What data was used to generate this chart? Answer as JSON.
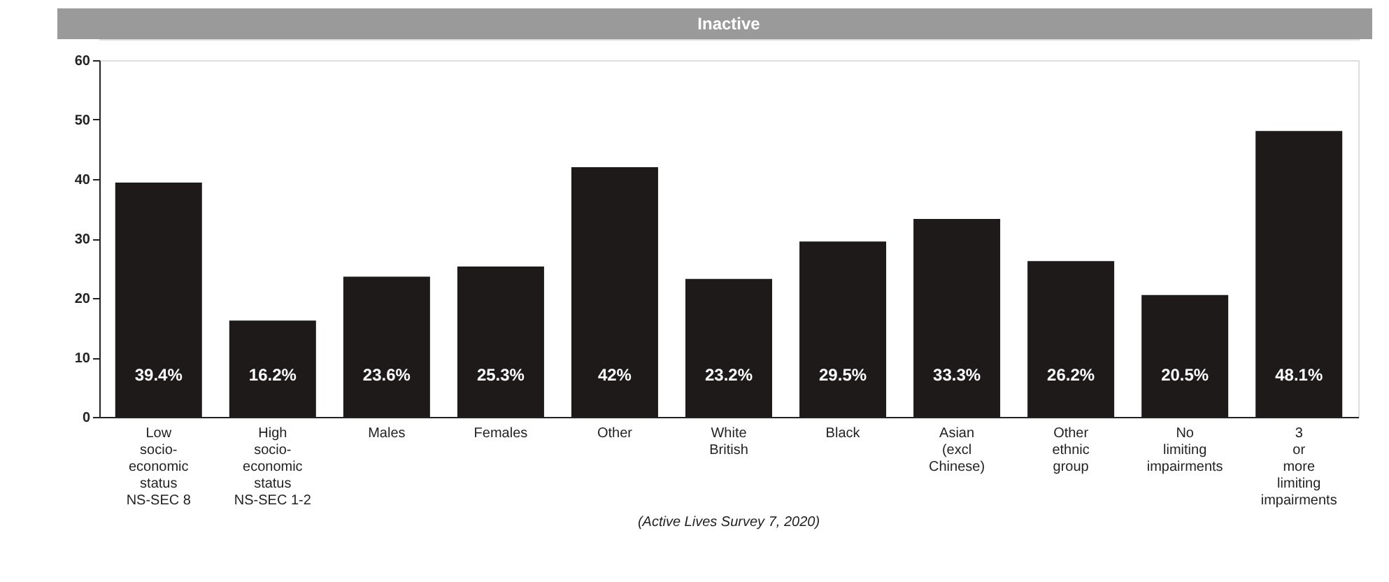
{
  "chart_data": {
    "type": "bar",
    "title": "Inactive",
    "categories": [
      "Low\nsocio-\neconomic\nstatus\nNS-SEC 8",
      "High\nsocio-\neconomic\nstatus\nNS-SEC 1-2",
      "Males",
      "Females",
      "Other",
      "White\nBritish",
      "Black",
      "Asian\n(excl\nChinese)",
      "Other\nethnic\ngroup",
      "No\nlimiting\nimpairments",
      "3\nor\nmore\nlimiting\nimpairments"
    ],
    "values": [
      39.4,
      16.2,
      23.6,
      25.3,
      42,
      23.2,
      29.5,
      33.3,
      26.2,
      20.5,
      48.1
    ],
    "value_labels": [
      "39.4%",
      "16.2%",
      "23.6%",
      "25.3%",
      "42%",
      "23.2%",
      "29.5%",
      "33.3%",
      "26.2%",
      "20.5%",
      "48.1%"
    ],
    "color": "#1e1a1a",
    "ylim": [
      0,
      60
    ],
    "yticks": [
      0,
      10,
      20,
      30,
      40,
      50,
      60
    ],
    "grid": false,
    "annotations": [
      "(Active Lives Survey 7, 2020)"
    ]
  }
}
